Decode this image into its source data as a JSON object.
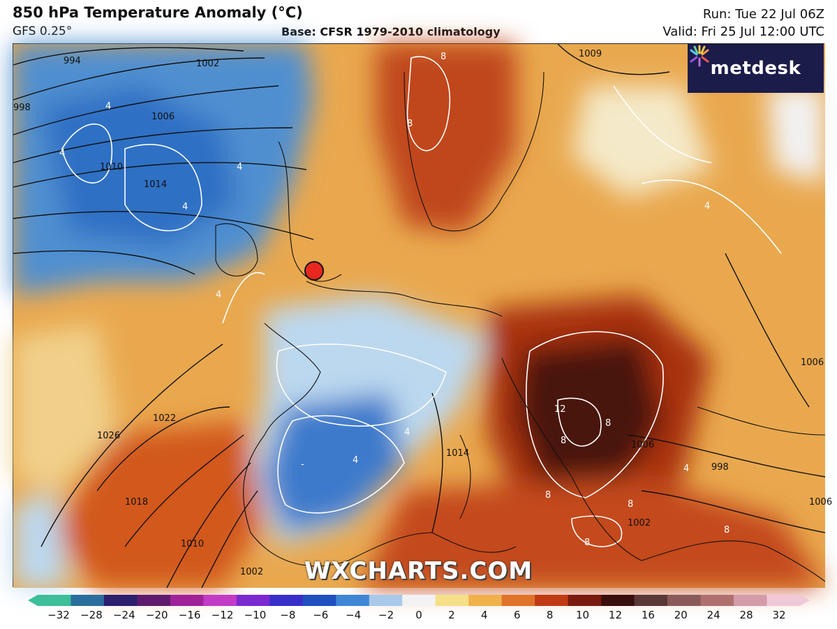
{
  "header": {
    "title": "850 hPa Temperature Anomaly (°C)",
    "model": "GFS 0.25°",
    "base": "Base: CFSR 1979-2010 climatology",
    "run": "Run: Tue 22 Jul 06Z",
    "valid": "Valid: Fri 25 Jul 12:00 UTC"
  },
  "logo": {
    "text": "metdesk",
    "icon": "burst-icon"
  },
  "watermark": "WXCHARTS.COM",
  "map": {
    "isobar_labels": [
      "994",
      "998",
      "1002",
      "1006",
      "1010",
      "1014",
      "1026",
      "1022",
      "1018",
      "1010",
      "1002",
      "1009",
      "1006",
      "1014",
      "1006",
      "998",
      "1002",
      "1006"
    ],
    "anomaly_labels": [
      "8",
      "8",
      "4",
      "4",
      "4",
      "4",
      "12",
      "8",
      "8",
      "8",
      "8",
      "8",
      "-",
      "4",
      "4",
      "4",
      "4",
      "4",
      "8"
    ],
    "marker": {
      "color": "#e8281e",
      "label": ""
    }
  },
  "colorbar": {
    "ticks": [
      "−32",
      "−28",
      "−24",
      "−20",
      "−16",
      "−12",
      "−10",
      "−8",
      "−6",
      "−4",
      "−2",
      "0",
      "2",
      "4",
      "6",
      "8",
      "10",
      "12",
      "16",
      "20",
      "24",
      "28",
      "32"
    ],
    "colors": [
      "#3dbf9a",
      "#2a6e9e",
      "#2b1f6e",
      "#5e1a6e",
      "#a0219a",
      "#c23bc6",
      "#7a2ad0",
      "#3a2fc9",
      "#2050c0",
      "#3f86d6",
      "#a8c9ea",
      "#f2f2f2",
      "#f5df88",
      "#f0b04a",
      "#e0722a",
      "#c03a14",
      "#7a1a0e",
      "#3a0e0c",
      "#5a3838",
      "#8a5a5a",
      "#b07070",
      "#d49ca8",
      "#f0c8d8"
    ]
  }
}
